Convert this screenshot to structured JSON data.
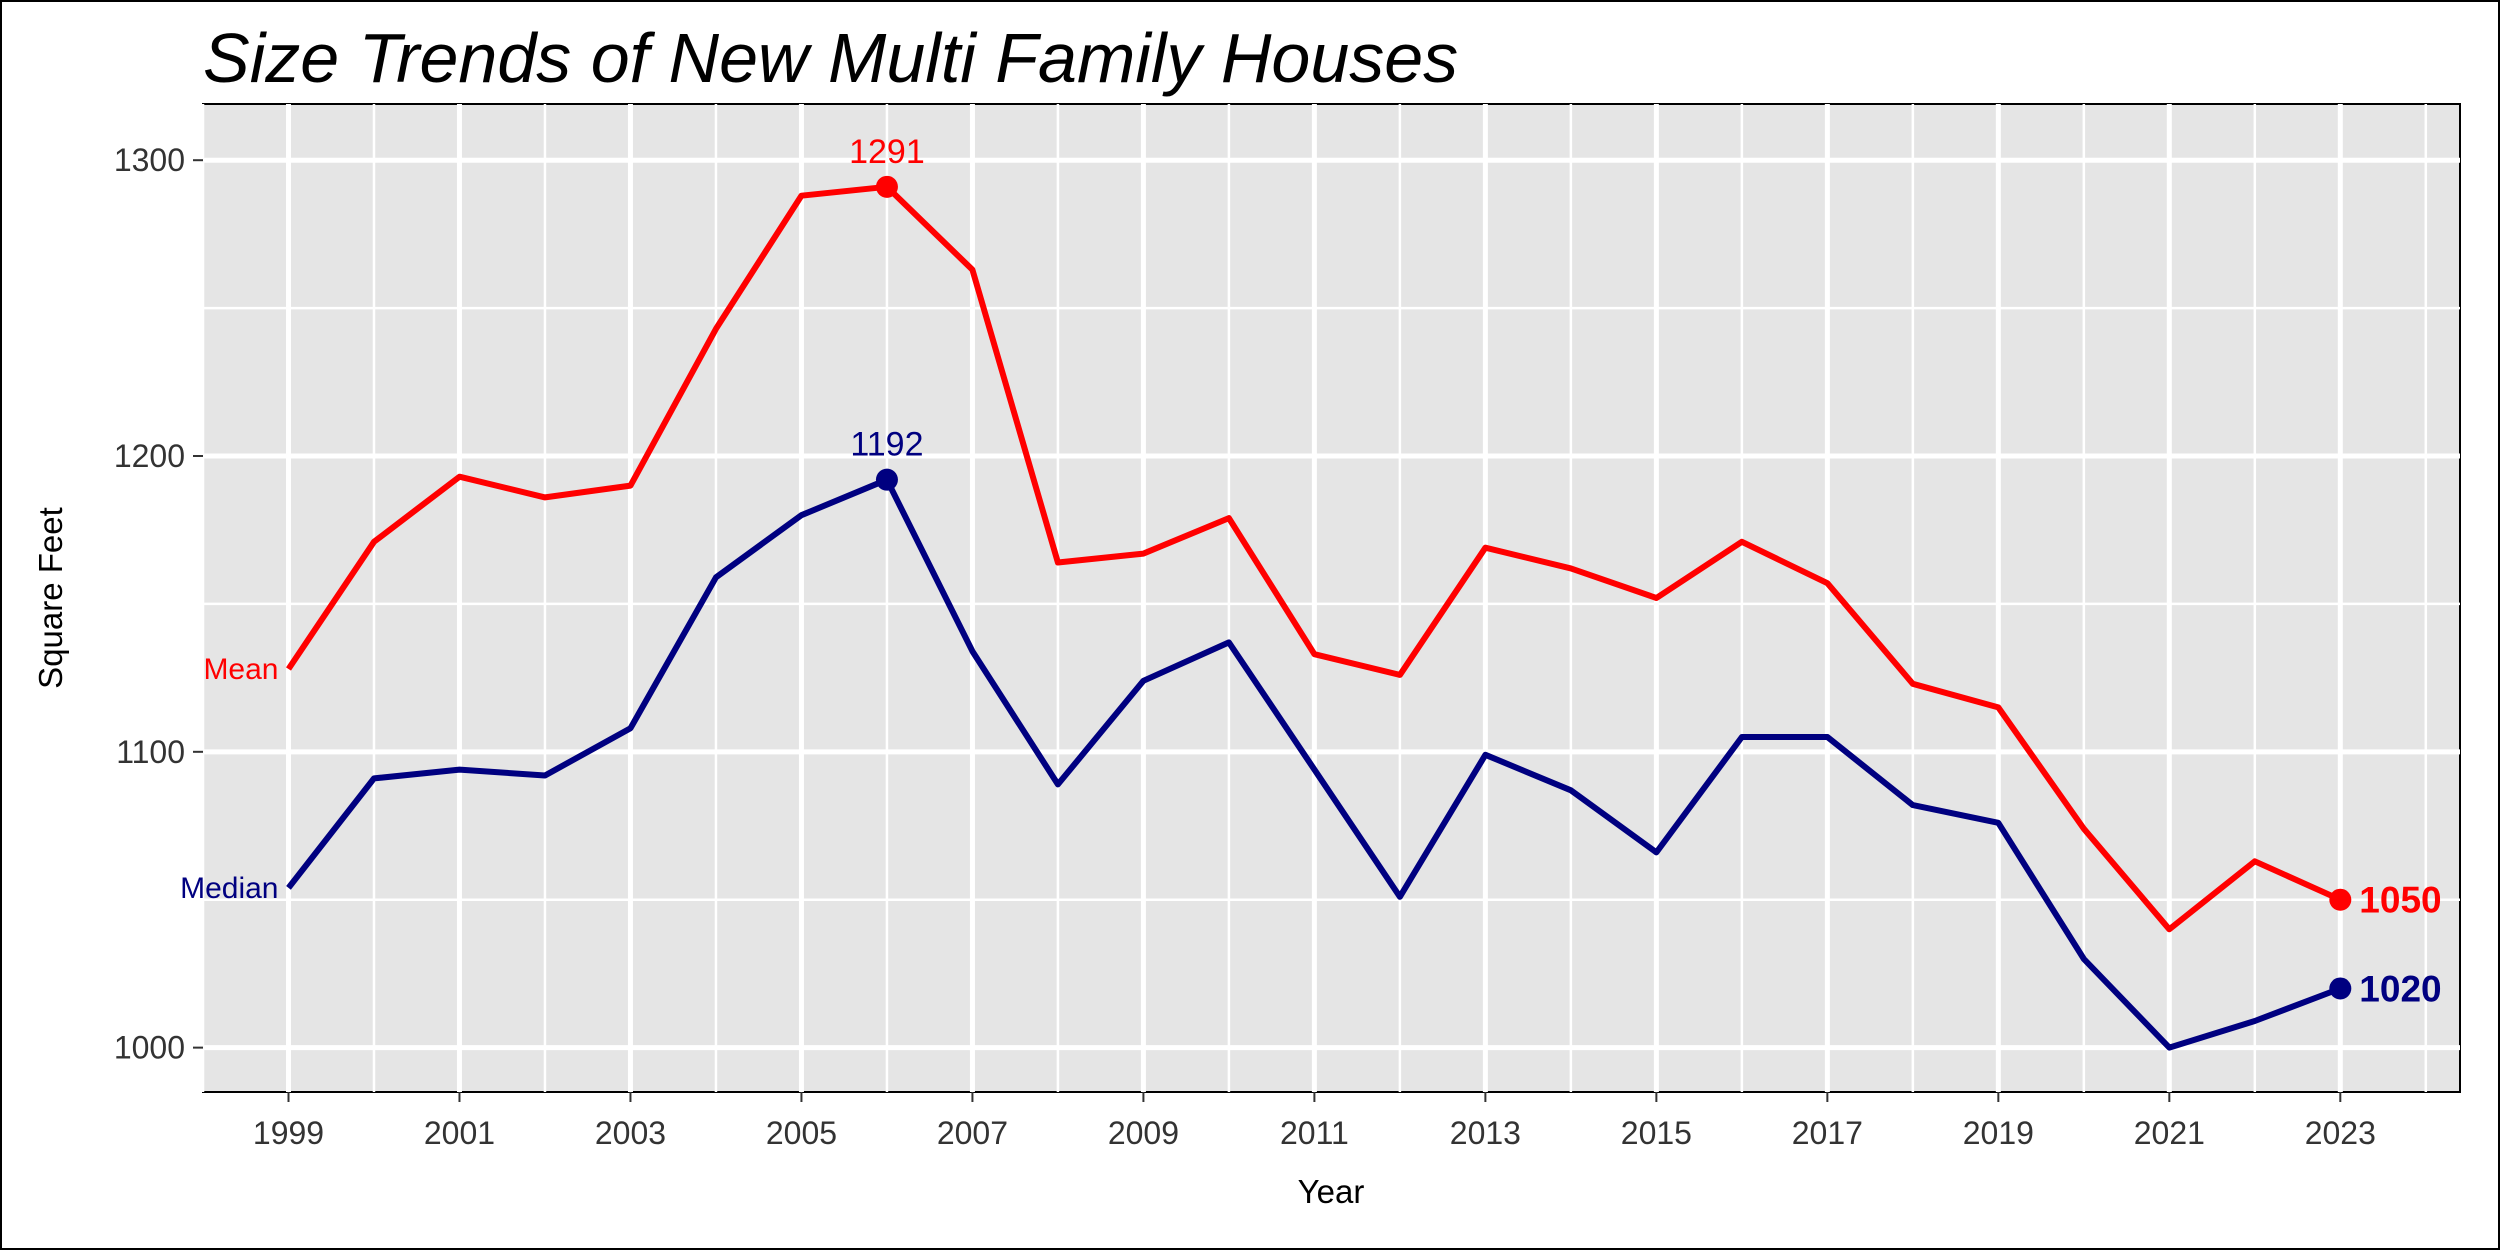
{
  "chart_data": {
    "type": "line",
    "title": "Size Trends of New Multi Family Houses",
    "xlabel": "Year",
    "ylabel": "Square Feet",
    "x": [
      1999,
      2000,
      2001,
      2002,
      2003,
      2004,
      2005,
      2006,
      2007,
      2008,
      2009,
      2010,
      2011,
      2012,
      2013,
      2014,
      2015,
      2016,
      2017,
      2018,
      2019,
      2020,
      2021,
      2022,
      2023
    ],
    "xlim": [
      1998,
      2024.4
    ],
    "ylim": [
      985,
      1319
    ],
    "x_ticks": [
      1999,
      2001,
      2003,
      2005,
      2007,
      2009,
      2011,
      2013,
      2015,
      2017,
      2019,
      2021,
      2023
    ],
    "y_ticks": [
      1000,
      1100,
      1200,
      1300
    ],
    "grid": true,
    "series": [
      {
        "name": "Mean",
        "color": "#ff0000",
        "values": [
          1128,
          1171,
          1193,
          1186,
          1190,
          1243,
          1288,
          1291,
          1263,
          1164,
          1167,
          1179,
          1133,
          1126,
          1169,
          1162,
          1152,
          1171,
          1157,
          1123,
          1115,
          1074,
          1040,
          1063,
          1050
        ],
        "peak": {
          "x": 2006,
          "y": 1291,
          "label": "1291"
        },
        "end": {
          "x": 2023,
          "y": 1050,
          "label": "1050"
        }
      },
      {
        "name": "Median",
        "color": "#000080",
        "values": [
          1054,
          1091,
          1094,
          1092,
          1108,
          1159,
          1180,
          1192,
          1134,
          1089,
          1124,
          1137,
          1094,
          1051,
          1099,
          1087,
          1066,
          1105,
          1105,
          1082,
          1076,
          1030,
          1000,
          1009,
          1020
        ],
        "peak": {
          "x": 2006,
          "y": 1192,
          "label": "1192"
        },
        "end": {
          "x": 2023,
          "y": 1020,
          "label": "1020"
        }
      }
    ]
  }
}
